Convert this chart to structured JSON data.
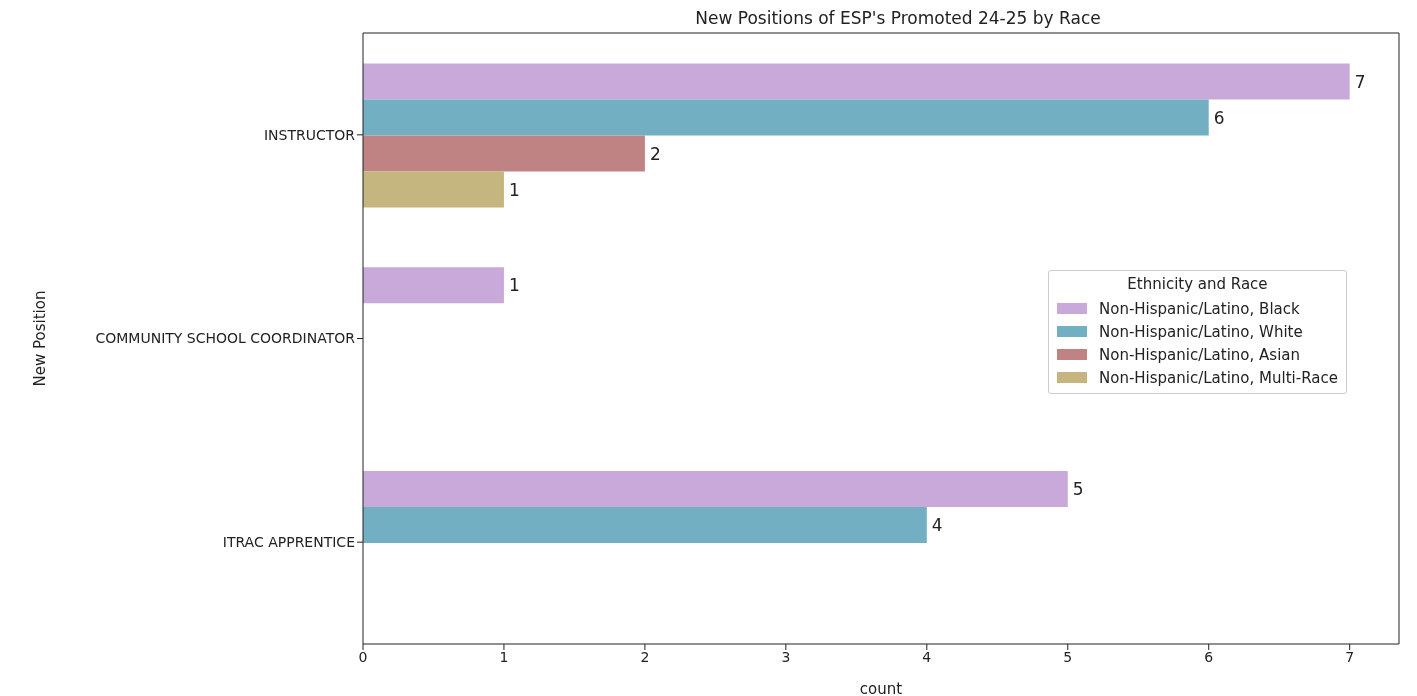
{
  "chart_data": {
    "type": "bar",
    "orientation": "horizontal",
    "title": "New Positions of ESP's Promoted 24-25 by Race",
    "xlabel": "count",
    "ylabel": "New Position",
    "legend_title": "Ethnicity and Race",
    "legend": "right",
    "categories": [
      "INSTRUCTOR",
      "COMMUNITY SCHOOL COORDINATOR",
      "ITRAC APPRENTICE"
    ],
    "series": [
      {
        "name": "Non-Hispanic/Latino, Black",
        "color": "#c9a9d9",
        "values": [
          7,
          1,
          5
        ]
      },
      {
        "name": "Non-Hispanic/Latino, White",
        "color": "#72afc3",
        "values": [
          6,
          null,
          4
        ]
      },
      {
        "name": "Non-Hispanic/Latino, Asian",
        "color": "#c08383",
        "values": [
          2,
          null,
          null
        ]
      },
      {
        "name": "Non-Hispanic/Latino, Multi-Race",
        "color": "#c5b57f",
        "values": [
          1,
          null,
          null
        ]
      }
    ],
    "xlim": [
      0,
      7.35
    ],
    "xticks": [
      0,
      1,
      2,
      3,
      4,
      5,
      6,
      7
    ],
    "data_labels": true,
    "grid": false
  }
}
